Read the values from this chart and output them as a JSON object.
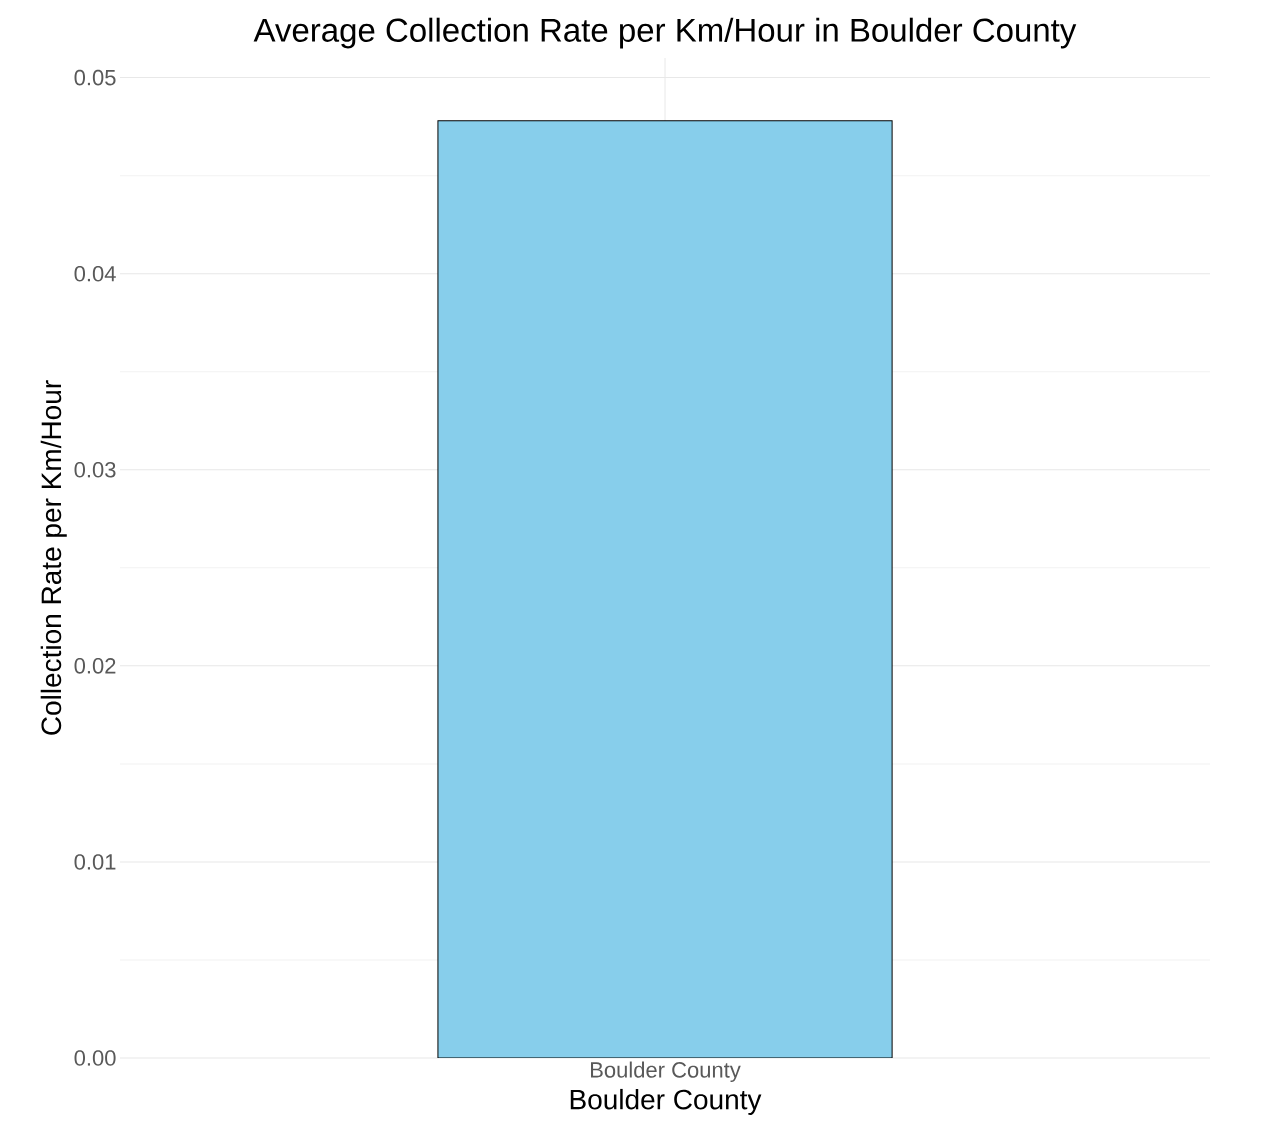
{
  "chart_data": {
    "type": "bar",
    "title": "Average Collection Rate per Km/Hour in Boulder County",
    "xlabel": "Boulder County",
    "ylabel": "Collection Rate per Km/Hour",
    "categories": [
      "Boulder County"
    ],
    "values": [
      0.0478
    ],
    "color": "#87ceeb",
    "ylim": [
      0,
      0.05
    ],
    "yticks": [
      {
        "value": 0,
        "label": "0.00"
      },
      {
        "value": 0.01,
        "label": "0.01"
      },
      {
        "value": 0.02,
        "label": "0.02"
      },
      {
        "value": 0.03,
        "label": "0.03"
      },
      {
        "value": 0.04,
        "label": "0.04"
      },
      {
        "value": 0.05,
        "label": "0.05"
      }
    ],
    "grid": true
  }
}
